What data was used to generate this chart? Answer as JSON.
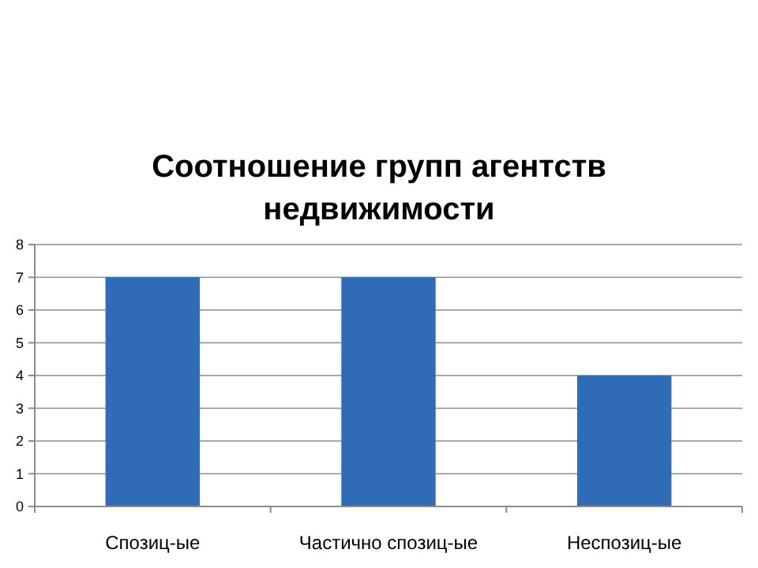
{
  "chart_data": {
    "type": "bar",
    "title": "Соотношение групп агентств недвижимости",
    "categories": [
      "Спозиц-ые",
      "Частично спозиц-ые",
      "Неспозиц-ые"
    ],
    "values": [
      7,
      7,
      4
    ],
    "color": "#2f6cb5",
    "ylim": [
      0,
      8
    ],
    "yticks": [
      0,
      1,
      2,
      3,
      4,
      5,
      6,
      7,
      8
    ],
    "grid": "y"
  }
}
